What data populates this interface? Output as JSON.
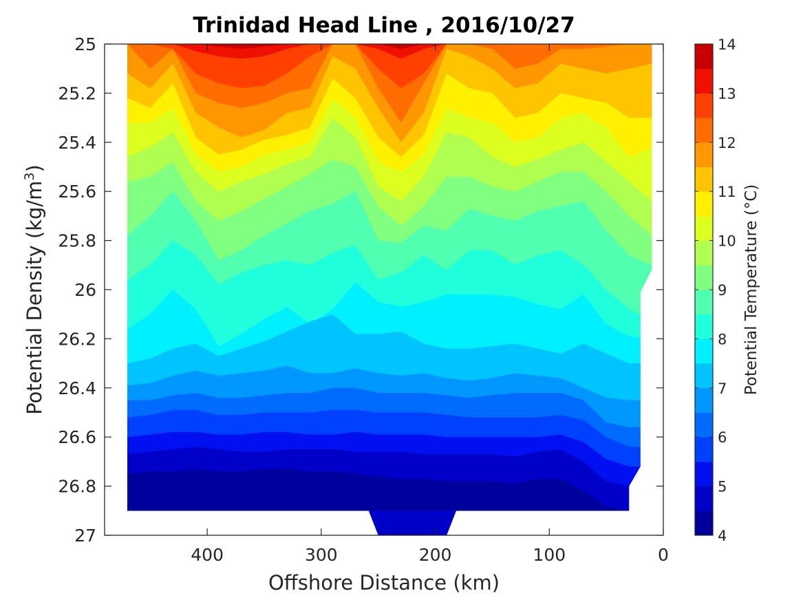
{
  "chart_data": {
    "type": "heatmap",
    "subtype": "filled-contour",
    "title": "Trinidad Head Line , 2016/10/27",
    "xlabel": "Offshore Distance (km)",
    "ylabel": "Potential Density (kg/m",
    "ylabel_superscript": "3",
    "ylabel_suffix": ")",
    "colorbar_label": "Potential Temperature (°C)",
    "colormap": "jet",
    "xlim": [
      0,
      490
    ],
    "x_reversed": true,
    "ylim": [
      25,
      27
    ],
    "y_reversed": true,
    "x_ticks": [
      400,
      300,
      200,
      100,
      0
    ],
    "y_ticks": [
      "25",
      "25.2",
      "25.4",
      "25.6",
      "25.8",
      "26",
      "26.2",
      "26.4",
      "26.6",
      "26.8",
      "27"
    ],
    "colorbar_ticks": [
      4,
      5,
      6,
      7,
      8,
      9,
      10,
      11,
      12,
      13,
      14
    ],
    "levels": [
      4,
      4.5,
      5,
      5.5,
      6,
      6.5,
      7,
      7.5,
      8,
      8.5,
      9,
      9.5,
      10,
      10.5,
      11,
      11.5,
      12,
      12.5,
      13,
      13.5,
      14
    ],
    "level_colors": [
      "#00009c",
      "#0000c8",
      "#0010f0",
      "#0040ff",
      "#006cff",
      "#0098ff",
      "#00c4ff",
      "#00f0ff",
      "#20ffdc",
      "#50ffb0",
      "#80ff80",
      "#b0ff50",
      "#dcff20",
      "#fff000",
      "#ffc400",
      "#ff9800",
      "#ff6c00",
      "#ff4000",
      "#f01000",
      "#c80000"
    ],
    "data_extent": {
      "x_min_km": 10,
      "x_max_km": 470,
      "sigma_min": 25,
      "sigma_max": 26.9
    },
    "deep_pocket": {
      "x_range_km": [
        190,
        250
      ],
      "sigma_max": 27,
      "temperature": 4.7
    },
    "x": [
      470,
      450,
      430,
      410,
      390,
      370,
      350,
      330,
      310,
      290,
      270,
      250,
      230,
      210,
      190,
      170,
      150,
      130,
      110,
      90,
      70,
      50,
      30,
      10
    ],
    "isotherms": [
      {
        "temp": 13.5,
        "sigma": [
          25.0,
          25.0,
          25.0,
          25.0,
          25.01,
          25.02,
          25.01,
          25.0,
          25.0,
          25.0,
          25.0,
          25.0,
          25.02,
          25.0,
          25.0,
          25.0,
          25.0,
          25.0,
          25.0,
          25.0,
          25.0,
          25.0,
          25.0,
          25.0
        ]
      },
      {
        "temp": 13.0,
        "sigma": [
          25.0,
          25.0,
          25.0,
          25.03,
          25.05,
          25.06,
          25.05,
          25.02,
          25.0,
          25.0,
          25.0,
          25.02,
          25.06,
          25.02,
          25.0,
          25.0,
          25.0,
          25.0,
          25.0,
          25.0,
          25.0,
          25.0,
          25.0,
          25.0
        ]
      },
      {
        "temp": 12.5,
        "sigma": [
          25.0,
          25.0,
          25.02,
          25.12,
          25.16,
          25.18,
          25.17,
          25.12,
          25.05,
          25.0,
          25.0,
          25.1,
          25.18,
          25.12,
          25.0,
          25.0,
          25.0,
          25.0,
          25.0,
          25.0,
          25.0,
          25.0,
          25.0,
          25.0
        ]
      },
      {
        "temp": 12.0,
        "sigma": [
          25.0,
          25.1,
          25.02,
          25.2,
          25.24,
          25.26,
          25.24,
          25.2,
          25.18,
          25.0,
          25.0,
          25.18,
          25.32,
          25.16,
          25.0,
          25.0,
          25.02,
          25.1,
          25.08,
          25.02,
          25.02,
          25.01,
          25.0,
          25.0
        ]
      },
      {
        "temp": 11.5,
        "sigma": [
          25.12,
          25.18,
          25.08,
          25.28,
          25.34,
          25.38,
          25.35,
          25.28,
          25.26,
          25.05,
          25.1,
          25.26,
          25.4,
          25.28,
          25.02,
          25.05,
          25.1,
          25.18,
          25.16,
          25.08,
          25.1,
          25.12,
          25.1,
          25.08
        ]
      },
      {
        "temp": 11.0,
        "sigma": [
          25.22,
          25.26,
          25.16,
          25.38,
          25.45,
          25.43,
          25.39,
          25.37,
          25.34,
          25.14,
          25.22,
          25.38,
          25.46,
          25.37,
          25.12,
          25.18,
          25.2,
          25.3,
          25.28,
          25.2,
          25.22,
          25.24,
          25.3,
          25.3
        ]
      },
      {
        "temp": 10.5,
        "sigma": [
          25.32,
          25.32,
          25.26,
          25.45,
          25.52,
          25.5,
          25.45,
          25.43,
          25.4,
          25.22,
          25.3,
          25.48,
          25.52,
          25.45,
          25.26,
          25.3,
          25.32,
          25.4,
          25.38,
          25.3,
          25.28,
          25.34,
          25.46,
          25.42
        ]
      },
      {
        "temp": 10.0,
        "sigma": [
          25.46,
          25.42,
          25.36,
          25.52,
          25.6,
          25.56,
          25.53,
          25.49,
          25.46,
          25.3,
          25.38,
          25.58,
          25.64,
          25.54,
          25.36,
          25.38,
          25.46,
          25.5,
          25.47,
          25.43,
          25.4,
          25.48,
          25.56,
          25.64
        ]
      },
      {
        "temp": 9.5,
        "sigma": [
          25.56,
          25.54,
          25.48,
          25.64,
          25.72,
          25.68,
          25.63,
          25.58,
          25.53,
          25.47,
          25.5,
          25.66,
          25.74,
          25.66,
          25.54,
          25.54,
          25.58,
          25.6,
          25.56,
          25.52,
          25.52,
          25.6,
          25.7,
          25.78
        ]
      },
      {
        "temp": 9.0,
        "sigma": [
          25.78,
          25.7,
          25.6,
          25.72,
          25.88,
          25.84,
          25.78,
          25.73,
          25.68,
          25.65,
          25.6,
          25.8,
          25.81,
          25.74,
          25.76,
          25.67,
          25.7,
          25.72,
          25.68,
          25.66,
          25.64,
          25.76,
          25.86,
          25.9
        ]
      },
      {
        "temp": 8.5,
        "sigma": [
          25.96,
          25.9,
          25.8,
          25.86,
          25.98,
          25.93,
          25.9,
          25.88,
          25.9,
          25.85,
          25.82,
          25.96,
          25.93,
          25.86,
          25.92,
          25.84,
          25.84,
          25.9,
          25.86,
          25.84,
          25.9,
          26.0,
          26.08,
          26.12
        ]
      },
      {
        "temp": 8.0,
        "sigma": [
          26.16,
          26.1,
          26.0,
          26.08,
          26.23,
          26.18,
          26.12,
          26.07,
          26.14,
          26.08,
          25.97,
          26.05,
          26.07,
          26.05,
          26.02,
          26.02,
          26.02,
          26.03,
          26.06,
          26.08,
          26.02,
          26.14,
          26.19,
          26.2
        ]
      },
      {
        "temp": 7.5,
        "sigma": [
          26.3,
          26.28,
          26.24,
          26.22,
          26.27,
          26.24,
          26.21,
          26.17,
          26.13,
          26.1,
          26.18,
          26.18,
          26.17,
          26.22,
          26.24,
          26.24,
          26.23,
          26.22,
          26.24,
          26.26,
          26.22,
          26.26,
          26.3,
          26.3
        ]
      },
      {
        "temp": 7.0,
        "sigma": [
          26.39,
          26.38,
          26.35,
          26.33,
          26.35,
          26.34,
          26.33,
          26.31,
          26.34,
          26.34,
          26.32,
          26.34,
          26.35,
          26.34,
          26.36,
          26.37,
          26.36,
          26.34,
          26.35,
          26.36,
          26.4,
          26.44,
          26.45,
          26.45
        ]
      },
      {
        "temp": 6.5,
        "sigma": [
          26.45,
          26.45,
          26.43,
          26.42,
          26.44,
          26.44,
          26.43,
          26.42,
          26.42,
          26.4,
          26.4,
          26.42,
          26.42,
          26.42,
          26.43,
          26.44,
          26.43,
          26.42,
          26.42,
          26.42,
          26.45,
          26.54,
          26.56,
          26.56
        ]
      },
      {
        "temp": 6.0,
        "sigma": [
          26.52,
          26.51,
          26.49,
          26.49,
          26.51,
          26.51,
          26.5,
          26.5,
          26.5,
          26.49,
          26.49,
          26.5,
          26.5,
          26.5,
          26.51,
          26.52,
          26.52,
          26.52,
          26.52,
          26.51,
          26.53,
          26.6,
          26.64,
          26.64
        ]
      },
      {
        "temp": 5.5,
        "sigma": [
          26.6,
          26.59,
          26.58,
          26.58,
          26.59,
          26.59,
          26.58,
          26.58,
          26.59,
          26.59,
          26.58,
          26.59,
          26.59,
          26.59,
          26.6,
          26.6,
          26.6,
          26.6,
          26.6,
          26.59,
          26.62,
          26.69,
          26.72,
          26.72
        ]
      },
      {
        "temp": 5.0,
        "sigma": [
          26.67,
          26.66,
          26.65,
          26.64,
          26.65,
          26.66,
          26.66,
          26.65,
          26.65,
          26.65,
          26.66,
          26.66,
          26.66,
          26.67,
          26.67,
          26.67,
          26.67,
          26.68,
          26.66,
          26.65,
          26.7,
          26.78,
          26.8,
          26.8
        ]
      },
      {
        "temp": 4.5,
        "sigma": [
          26.75,
          26.74,
          26.74,
          26.73,
          26.74,
          26.74,
          26.73,
          26.73,
          26.74,
          26.74,
          26.75,
          26.76,
          26.77,
          26.77,
          26.78,
          26.78,
          26.78,
          26.79,
          26.77,
          26.77,
          26.82,
          26.88,
          26.9,
          26.9
        ]
      }
    ]
  }
}
